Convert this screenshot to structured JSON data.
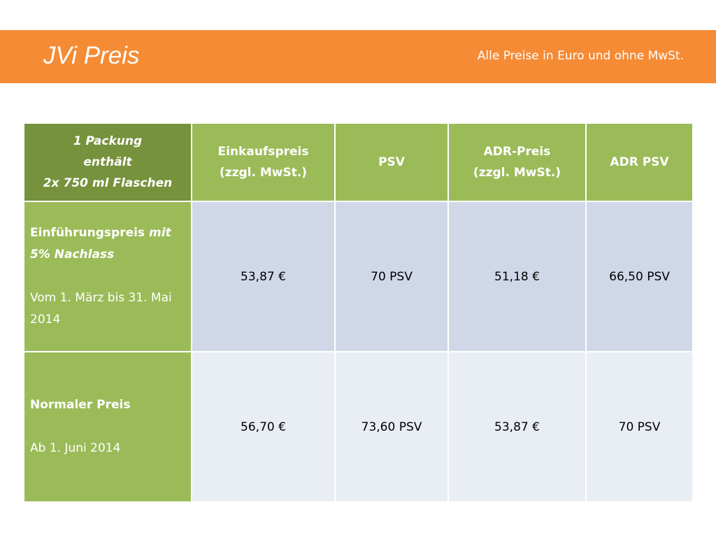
{
  "header": {
    "title": "JVi Preis",
    "note": "Alle Preise in Euro und ohne MwSt."
  },
  "colors": {
    "band": "#f58b35",
    "header_green": "#9bbb59",
    "corner_green": "#76923c",
    "row_blue_dark": "#d0d8e8",
    "row_blue_light": "#e9edf4"
  },
  "table": {
    "corner": {
      "line1": "1 Packung",
      "line2": "enthält",
      "line3": "2x 750 ml Flaschen"
    },
    "columns": [
      {
        "line1": "Einkaufspreis",
        "line2": "(zzgl. MwSt.)"
      },
      {
        "line1": "PSV",
        "line2": ""
      },
      {
        "line1": "ADR-Preis",
        "line2": "(zzgl. MwSt.)"
      },
      {
        "line1": "ADR PSV",
        "line2": ""
      }
    ],
    "rows": [
      {
        "label_bold": "Einführungspreis",
        "label_bold_italic": " mit 5% Nachlass",
        "detail": "Vom 1. März bis 31. Mai 2014",
        "values": [
          "53,87 €",
          "70 PSV",
          "51,18 €",
          "66,50 PSV"
        ]
      },
      {
        "label_bold": "Normaler Preis",
        "label_bold_italic": "",
        "detail": "Ab 1. Juni 2014",
        "values": [
          "56,70 €",
          "73,60 PSV",
          "53,87 €",
          "70 PSV"
        ]
      }
    ]
  }
}
